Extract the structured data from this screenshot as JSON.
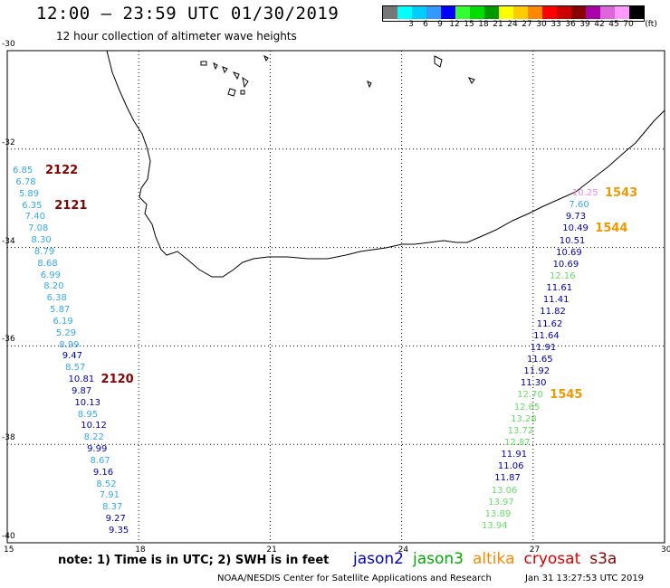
{
  "header": {
    "title": "12:00 — 23:59 UTC 01/30/2019",
    "subtitle": "12 hour collection of altimeter wave heights"
  },
  "legend": {
    "unit": "(ft)",
    "bins": [
      {
        "label": "",
        "color": "#777777"
      },
      {
        "label": "3",
        "color": "#00ffff"
      },
      {
        "label": "6",
        "color": "#00ccff"
      },
      {
        "label": "9",
        "color": "#3399ff"
      },
      {
        "label": "12",
        "color": "#0000ff"
      },
      {
        "label": "15",
        "color": "#33ff33"
      },
      {
        "label": "18",
        "color": "#00dd00"
      },
      {
        "label": "21",
        "color": "#009900"
      },
      {
        "label": "24",
        "color": "#ffff00"
      },
      {
        "label": "27",
        "color": "#ffcc00"
      },
      {
        "label": "30",
        "color": "#ff8800"
      },
      {
        "label": "33",
        "color": "#ff0000"
      },
      {
        "label": "36",
        "color": "#cc0000"
      },
      {
        "label": "39",
        "color": "#880000"
      },
      {
        "label": "42",
        "color": "#aa00aa"
      },
      {
        "label": "45",
        "color": "#dd66dd"
      },
      {
        "label": "70",
        "color": "#ff99ff"
      },
      {
        "label": "",
        "color": "#000000"
      }
    ]
  },
  "axes": {
    "lon_ticks": [
      "15",
      "18",
      "21",
      "24",
      "27",
      "30"
    ],
    "lat_ticks": [
      "-30",
      "-32",
      "-34",
      "-36",
      "-38",
      "-40"
    ]
  },
  "tracks": {
    "west": {
      "values": [
        "6.85",
        "6.78",
        "5.89",
        "6.35",
        "7.40",
        "7.08",
        "8.30",
        "8.79",
        "8.68",
        "6.99",
        "8.20",
        "6.38",
        "5.87",
        "6.19",
        "5.29",
        "8.99",
        "9.47",
        "8.57",
        "10.81",
        "9.87",
        "10.13",
        "8.95",
        "10.12",
        "8.22",
        "9.99",
        "8.67",
        "9.16",
        "8.52",
        "7.91",
        "8.37",
        "9.27",
        "9.35"
      ],
      "colors": [
        "#33aaee",
        "#33aaee",
        "#33aaee",
        "#33aaee",
        "#33aaee",
        "#33aaee",
        "#33aaee",
        "#33aaee",
        "#33aaee",
        "#33aaee",
        "#33aaee",
        "#33aaee",
        "#33aaee",
        "#33aaee",
        "#33aaee",
        "#33aaee",
        "#0000aa",
        "#33aaee",
        "#0000aa",
        "#0000aa",
        "#0000aa",
        "#33aaee",
        "#0000aa",
        "#33aaee",
        "#0000aa",
        "#33aaee",
        "#0000aa",
        "#33aaee",
        "#33aaee",
        "#33aaee",
        "#0000aa",
        "#0000aa"
      ],
      "times": [
        "2122",
        "2121",
        "2120"
      ],
      "time_color": "#880000"
    },
    "east": {
      "values": [
        "10.25",
        "7.60",
        "9.73",
        "10.49",
        "10.51",
        "10.69",
        "10.69",
        "12.16",
        "11.61",
        "11.41",
        "11.82",
        "11.62",
        "11.64",
        "11.91",
        "11.65",
        "11.92",
        "11.30",
        "12.70",
        "12.65",
        "13.28",
        "13.72",
        "12.87",
        "11.91",
        "11.06",
        "11.87",
        "13.06",
        "13.97",
        "13.89",
        "13.94"
      ],
      "colors": [
        "#ee88ee",
        "#33aaee",
        "#0000aa",
        "#0000aa",
        "#0000aa",
        "#0000aa",
        "#0000aa",
        "#66dd66",
        "#0000aa",
        "#0000aa",
        "#0000aa",
        "#0000aa",
        "#0000aa",
        "#0000aa",
        "#0000aa",
        "#0000aa",
        "#0000aa",
        "#66dd66",
        "#66dd66",
        "#66dd66",
        "#66dd66",
        "#66dd66",
        "#0000aa",
        "#0000aa",
        "#0000aa",
        "#66dd66",
        "#66dd66",
        "#66dd66",
        "#66dd66"
      ],
      "times": [
        "1543",
        "1544",
        "1545"
      ],
      "time_color": "#ee9900"
    }
  },
  "footer": {
    "note": "note:  1) Time is in UTC;  2) SWH is in feet",
    "satellites": [
      {
        "name": "jason2",
        "color": "#0000cc"
      },
      {
        "name": "jason3",
        "color": "#00aa00"
      },
      {
        "name": "altika",
        "color": "#ff8800"
      },
      {
        "name": "cryosat",
        "color": "#dd0000"
      },
      {
        "name": "s3a",
        "color": "#880000"
      }
    ],
    "credit": "NOAA/NESDIS Center for Satellite Applications and Research",
    "timestamp": "Jan 31 13:27:53 UTC 2019"
  }
}
